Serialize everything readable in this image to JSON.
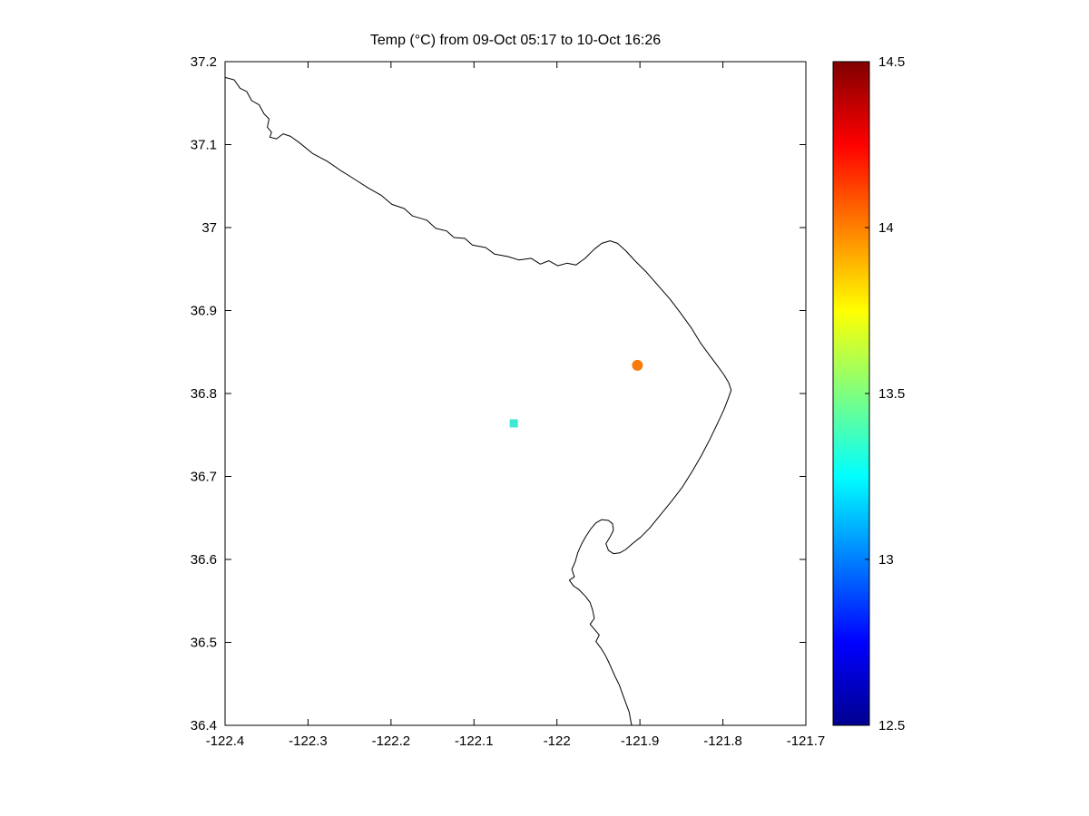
{
  "figure": {
    "background": "#ffffff"
  },
  "chart_data": {
    "type": "scatter",
    "title": "Temp (°C) from 09-Oct 05:17 to 10-Oct 16:26",
    "xlabel": "",
    "ylabel": "",
    "xlim": [
      -122.4,
      -121.7
    ],
    "ylim": [
      36.4,
      37.2
    ],
    "grid": false,
    "x_ticks": {
      "values": [
        -122.4,
        -122.3,
        -122.2,
        -122.1,
        -122.0,
        -121.9,
        -121.8,
        -121.7
      ],
      "labels": [
        "-122.4",
        "-122.3",
        "-122.2",
        "-122.1",
        "-122",
        "-121.9",
        "-121.8",
        "-121.7"
      ]
    },
    "y_ticks": {
      "values": [
        36.4,
        36.5,
        36.6,
        36.7,
        36.8,
        36.9,
        37.0,
        37.1,
        37.2
      ],
      "labels": [
        "36.4",
        "36.5",
        "36.6",
        "36.7",
        "36.8",
        "36.9",
        "37",
        "37.1",
        "37.2"
      ]
    },
    "points": [
      {
        "lon": -121.903,
        "lat": 36.834,
        "temp": 14.1,
        "marker": "circle",
        "color": "#F87A0C",
        "size": 12
      },
      {
        "lon": -122.052,
        "lat": 36.764,
        "temp": 13.2,
        "marker": "square",
        "color": "#3FE8D2",
        "size": 9
      }
    ],
    "colorbar": {
      "min": 12.5,
      "max": 14.5,
      "colormap": "jet",
      "tick_values": [
        12.5,
        13.0,
        13.5,
        14.0,
        14.5
      ],
      "tick_labels": [
        "12.5",
        "13",
        "13.5",
        "14",
        "14.5"
      ],
      "gradient_stops": [
        {
          "offset": 0.0,
          "color": "#00008F"
        },
        {
          "offset": 0.125,
          "color": "#0000FF"
        },
        {
          "offset": 0.375,
          "color": "#00FFFF"
        },
        {
          "offset": 0.625,
          "color": "#FFFF00"
        },
        {
          "offset": 0.875,
          "color": "#FF0000"
        },
        {
          "offset": 1.0,
          "color": "#800000"
        }
      ]
    },
    "coastline": [
      [
        -122.4,
        37.181
      ],
      [
        -122.389,
        37.178
      ],
      [
        -122.382,
        37.168
      ],
      [
        -122.374,
        37.164
      ],
      [
        -122.368,
        37.153
      ],
      [
        -122.359,
        37.148
      ],
      [
        -122.353,
        37.137
      ],
      [
        -122.347,
        37.131
      ],
      [
        -122.349,
        37.121
      ],
      [
        -122.344,
        37.115
      ],
      [
        -122.346,
        37.109
      ],
      [
        -122.338,
        37.107
      ],
      [
        -122.33,
        37.113
      ],
      [
        -122.321,
        37.11
      ],
      [
        -122.31,
        37.102
      ],
      [
        -122.294,
        37.089
      ],
      [
        -122.277,
        37.08
      ],
      [
        -122.261,
        37.069
      ],
      [
        -122.245,
        37.059
      ],
      [
        -122.228,
        37.048
      ],
      [
        -122.212,
        37.039
      ],
      [
        -122.199,
        37.028
      ],
      [
        -122.184,
        37.023
      ],
      [
        -122.174,
        37.014
      ],
      [
        -122.157,
        37.009
      ],
      [
        -122.146,
        36.999
      ],
      [
        -122.133,
        36.996
      ],
      [
        -122.124,
        36.988
      ],
      [
        -122.111,
        36.987
      ],
      [
        -122.102,
        36.979
      ],
      [
        -122.086,
        36.976
      ],
      [
        -122.075,
        36.968
      ],
      [
        -122.059,
        36.965
      ],
      [
        -122.046,
        36.961
      ],
      [
        -122.031,
        36.963
      ],
      [
        -122.02,
        36.956
      ],
      [
        -122.01,
        36.96
      ],
      [
        -121.999,
        36.954
      ],
      [
        -121.988,
        36.957
      ],
      [
        -121.977,
        36.955
      ],
      [
        -121.966,
        36.963
      ],
      [
        -121.955,
        36.974
      ],
      [
        -121.946,
        36.981
      ],
      [
        -121.936,
        36.984
      ],
      [
        -121.927,
        36.981
      ],
      [
        -121.917,
        36.972
      ],
      [
        -121.906,
        36.96
      ],
      [
        -121.892,
        36.946
      ],
      [
        -121.878,
        36.93
      ],
      [
        -121.864,
        36.914
      ],
      [
        -121.851,
        36.897
      ],
      [
        -121.838,
        36.879
      ],
      [
        -121.827,
        36.861
      ],
      [
        -121.816,
        36.846
      ],
      [
        -121.807,
        36.834
      ],
      [
        -121.799,
        36.823
      ],
      [
        -121.793,
        36.813
      ],
      [
        -121.79,
        36.804
      ],
      [
        -121.794,
        36.793
      ],
      [
        -121.799,
        36.78
      ],
      [
        -121.807,
        36.763
      ],
      [
        -121.816,
        36.744
      ],
      [
        -121.826,
        36.725
      ],
      [
        -121.837,
        36.706
      ],
      [
        -121.849,
        36.687
      ],
      [
        -121.862,
        36.67
      ],
      [
        -121.875,
        36.654
      ],
      [
        -121.888,
        36.638
      ],
      [
        -121.899,
        36.627
      ],
      [
        -121.909,
        36.619
      ],
      [
        -121.917,
        36.612
      ],
      [
        -121.924,
        36.608
      ],
      [
        -121.932,
        36.607
      ],
      [
        -121.938,
        36.611
      ],
      [
        -121.941,
        36.619
      ],
      [
        -121.936,
        36.627
      ],
      [
        -121.932,
        36.635
      ],
      [
        -121.933,
        36.643
      ],
      [
        -121.938,
        36.647
      ],
      [
        -121.946,
        36.648
      ],
      [
        -121.953,
        36.644
      ],
      [
        -121.959,
        36.637
      ],
      [
        -121.965,
        36.628
      ],
      [
        -121.97,
        36.619
      ],
      [
        -121.975,
        36.608
      ],
      [
        -121.978,
        36.597
      ],
      [
        -121.982,
        36.588
      ],
      [
        -121.979,
        36.579
      ],
      [
        -121.985,
        36.575
      ],
      [
        -121.98,
        36.568
      ],
      [
        -121.974,
        36.564
      ],
      [
        -121.966,
        36.556
      ],
      [
        -121.96,
        36.548
      ],
      [
        -121.957,
        36.539
      ],
      [
        -121.955,
        36.529
      ],
      [
        -121.96,
        36.522
      ],
      [
        -121.955,
        36.516
      ],
      [
        -121.949,
        36.509
      ],
      [
        -121.953,
        36.501
      ],
      [
        -121.947,
        36.493
      ],
      [
        -121.942,
        36.485
      ],
      [
        -121.938,
        36.477
      ],
      [
        -121.934,
        36.468
      ],
      [
        -121.93,
        36.459
      ],
      [
        -121.925,
        36.449
      ],
      [
        -121.921,
        36.438
      ],
      [
        -121.917,
        36.427
      ],
      [
        -121.913,
        36.416
      ],
      [
        -121.911,
        36.405
      ],
      [
        -121.91,
        36.4
      ]
    ]
  }
}
